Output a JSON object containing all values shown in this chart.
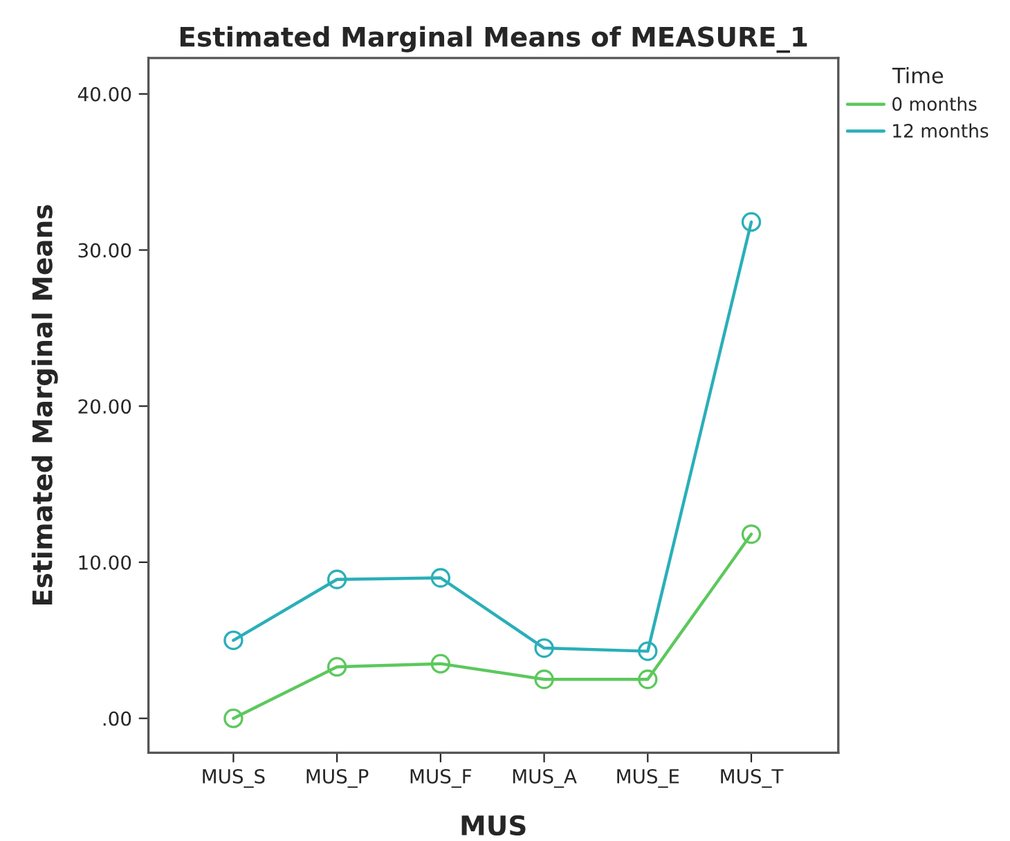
{
  "chart_data": {
    "type": "line",
    "title": "Estimated Marginal Means of MEASURE_1",
    "xlabel": "MUS",
    "ylabel": "Estimated Marginal Means",
    "legend_title": "Time",
    "categories": [
      "MUS_S",
      "MUS_P",
      "MUS_F",
      "MUS_A",
      "MUS_E",
      "MUS_T"
    ],
    "series": [
      {
        "name": "0 months",
        "color": "#5cc85c",
        "values": [
          0.0,
          3.3,
          3.5,
          2.5,
          2.5,
          11.8
        ]
      },
      {
        "name": "12 months",
        "color": "#2aafb8",
        "values": [
          5.0,
          8.9,
          9.0,
          4.5,
          4.3,
          31.8
        ]
      }
    ],
    "ylim": [
      -2.2,
      42.3
    ],
    "yticks": [
      {
        "value": 0,
        "label": ".00"
      },
      {
        "value": 10,
        "label": "10.00"
      },
      {
        "value": 20,
        "label": "20.00"
      },
      {
        "value": 30,
        "label": "30.00"
      },
      {
        "value": 40,
        "label": "40.00"
      }
    ],
    "marker": "circle",
    "line_style": "solid",
    "grid": false,
    "legend": "top right"
  }
}
